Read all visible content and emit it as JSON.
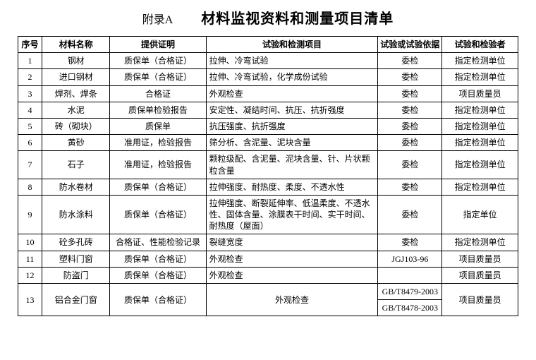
{
  "title": {
    "appendix": "附录A",
    "main": "材料监视资料和测量项目清单"
  },
  "headers": {
    "seq": "序号",
    "name": "材料名称",
    "proof": "提供证明",
    "test": "试验和检测项目",
    "basis": "试验或试验依据",
    "who": "试验和检验者"
  },
  "rows": [
    {
      "seq": "1",
      "name": "钢材",
      "proof": "质保单（合格证）",
      "test": "拉伸、冷弯试验",
      "basis": "委检",
      "who": "指定检测单位"
    },
    {
      "seq": "2",
      "name": "进口钢材",
      "proof": "质保单（合格证）",
      "test": "拉伸、冷弯试验，化学成份试验",
      "basis": "委检",
      "who": "指定检测单位"
    },
    {
      "seq": "3",
      "name": "焊剂、焊条",
      "proof": "合格证",
      "test": "外观检查",
      "basis": "委检",
      "who": "项目质量员"
    },
    {
      "seq": "4",
      "name": "水泥",
      "proof": "质保单检验报告",
      "test": "安定性、凝结时间、抗压、抗折强度",
      "basis": "委检",
      "who": "指定检测单位"
    },
    {
      "seq": "5",
      "name": "砖（砌块）",
      "proof": "质保单",
      "test": "抗压强度、抗折强度",
      "basis": "委检",
      "who": "指定检测单位"
    },
    {
      "seq": "6",
      "name": "黄砂",
      "proof": "准用证，检验报告",
      "test": "筛分析、含泥量、泥块含量",
      "basis": "委检",
      "who": "指定检测单位"
    },
    {
      "seq": "7",
      "name": "石子",
      "proof": "准用证，检验报告",
      "test": "颗粒级配、含泥量、泥块含量、针、片状颗粒含量",
      "basis": "委检",
      "who": "指定检测单位"
    },
    {
      "seq": "8",
      "name": "防水卷材",
      "proof": "质保单（合格证）",
      "test": "拉伸强度、耐热度、柔度、不透水性",
      "basis": "委检",
      "who": "指定检测单位"
    },
    {
      "seq": "9",
      "name": "防水涂料",
      "proof": "质保单（合格证）",
      "test": "拉伸强度、断裂延伸率、低温柔度、不透水性、固体含量、涂膜表干时间、实干时间、耐热度（屋面）",
      "basis": "委检",
      "who": "指定单位"
    },
    {
      "seq": "10",
      "name": "砼多孔砖",
      "proof": "合格证、性能检验记录",
      "test": "裂缝宽度",
      "basis": "委检",
      "who": "指定检测单位"
    },
    {
      "seq": "11",
      "name": "塑料门窗",
      "proof": "质保单（合格证）",
      "test": "外观检查",
      "basis": "JGJ103-96",
      "who": "项目质量员"
    },
    {
      "seq": "12",
      "name": "防盗门",
      "proof": "质保单（合格证）",
      "test": "外观检查",
      "basis": "",
      "who": "项目质量员"
    }
  ],
  "row13": {
    "seq": "13",
    "name": "铝合金门窗",
    "proof": "质保单（合格证）",
    "test": "外观检查",
    "basis1": "GB/T8479-2003",
    "basis2": "GB/T8478-2003",
    "who": "项目质量员"
  },
  "style": {
    "border_color": "#000000",
    "background": "#ffffff",
    "font_family": "SimSun",
    "header_fontsize": 12,
    "cell_fontsize": 12,
    "title_fontsize": 20
  }
}
